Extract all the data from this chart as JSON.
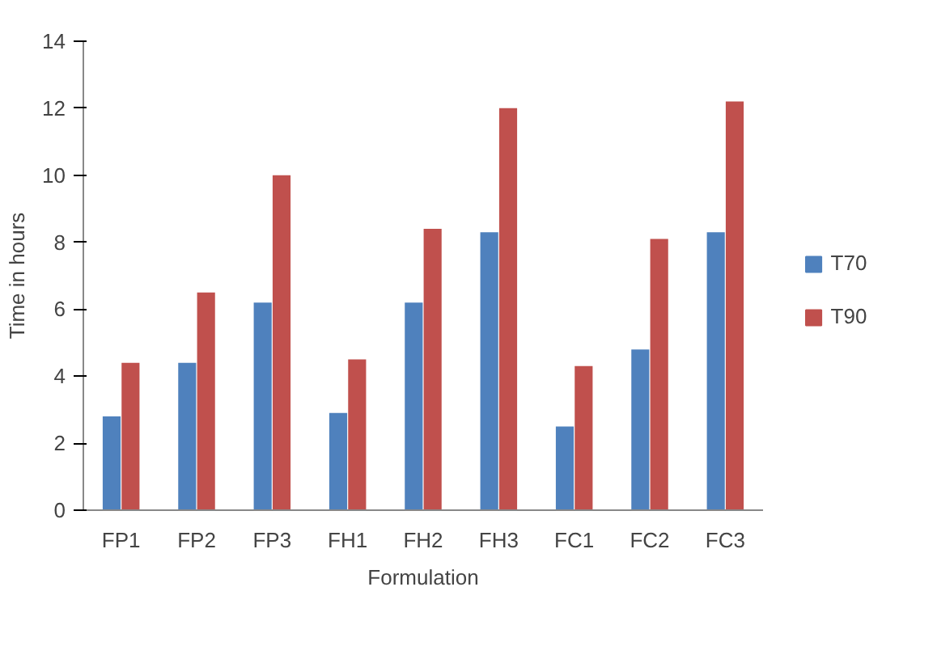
{
  "chart_data": {
    "type": "bar",
    "xlabel": "Formulation",
    "ylabel": "Time in hours",
    "categories": [
      "FP1",
      "FP2",
      "FP3",
      "FH1",
      "FH2",
      "FH3",
      "FC1",
      "FC2",
      "FC3"
    ],
    "series": [
      {
        "name": "T70",
        "color": "#4f81bd",
        "values": [
          2.8,
          4.4,
          6.2,
          2.9,
          6.2,
          8.3,
          2.5,
          4.8,
          8.3
        ]
      },
      {
        "name": "T90",
        "color": "#c0504d",
        "values": [
          4.4,
          6.5,
          10.0,
          4.5,
          8.4,
          12.0,
          4.3,
          8.1,
          12.2
        ]
      }
    ],
    "ylim": [
      0,
      14
    ],
    "yticks": [
      0,
      2,
      4,
      6,
      8,
      10,
      12,
      14
    ],
    "grid": false,
    "legend": "right"
  }
}
